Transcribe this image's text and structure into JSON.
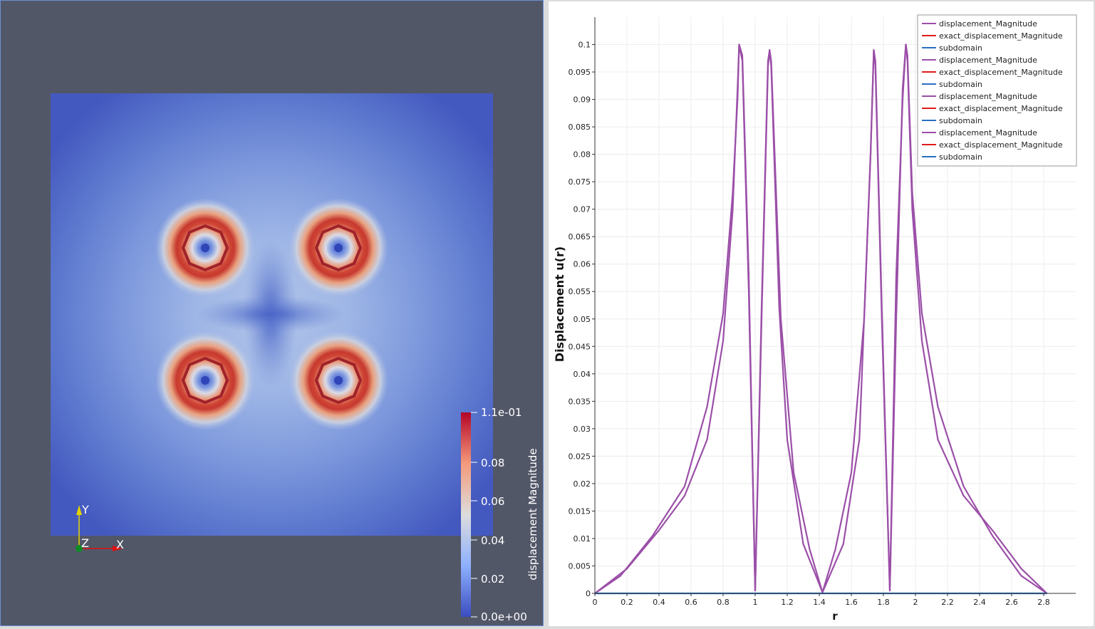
{
  "render_view": {
    "colorbar": {
      "title": "displacement Magnitude",
      "tick_labels": [
        "1.1e-01",
        "0.08",
        "0.06",
        "0.04",
        "0.02",
        "0.0e+00"
      ],
      "colors": {
        "low": "#3b4cc0",
        "mid": "#dddddd",
        "high": "#b40426"
      }
    },
    "axes": {
      "x_label": "X",
      "y_label": "Y",
      "z_label": "Z",
      "x_color": "#e01010",
      "y_color": "#e6d200",
      "z_color": "#0f8a28"
    },
    "background_color": "#525768"
  },
  "chart_data": {
    "type": "line",
    "xlabel": "r",
    "ylabel": "Displacement u(r)",
    "xlim": [
      0,
      3.0
    ],
    "ylim": [
      0,
      0.105
    ],
    "x_ticks": [
      "0",
      "0.2",
      "0.4",
      "0.6",
      "0.8",
      "1",
      "1.2",
      "1.4",
      "1.6",
      "1.8",
      "2",
      "2.2",
      "2.4",
      "2.6",
      "2.8"
    ],
    "y_ticks": [
      "0",
      "0.005",
      "0.01",
      "0.015",
      "0.02",
      "0.025",
      "0.03",
      "0.035",
      "0.04",
      "0.045",
      "0.05",
      "0.055",
      "0.06",
      "0.065",
      "0.07",
      "0.075",
      "0.08",
      "0.085",
      "0.09",
      "0.095",
      "0.1"
    ],
    "grid": true,
    "legend_position": "top-right",
    "legend": [
      {
        "name": "displacement_Magnitude",
        "color": "#9b4fa8"
      },
      {
        "name": "exact_displacement_Magnitude",
        "color": "#e01b1b"
      },
      {
        "name": "subdomain",
        "color": "#2a6fc0"
      },
      {
        "name": "displacement_Magnitude",
        "color": "#9b4fa8"
      },
      {
        "name": "exact_displacement_Magnitude",
        "color": "#e01b1b"
      },
      {
        "name": "subdomain",
        "color": "#2a6fc0"
      },
      {
        "name": "displacement_Magnitude",
        "color": "#9b4fa8"
      },
      {
        "name": "exact_displacement_Magnitude",
        "color": "#e01b1b"
      },
      {
        "name": "subdomain",
        "color": "#2a6fc0"
      },
      {
        "name": "displacement_Magnitude",
        "color": "#9b4fa8"
      },
      {
        "name": "exact_displacement_Magnitude",
        "color": "#e01b1b"
      },
      {
        "name": "subdomain",
        "color": "#2a6fc0"
      }
    ],
    "series": [
      {
        "name": "displacement_Magnitude",
        "color": "#9b4fa8",
        "x": [
          0,
          0.2,
          0.4,
          0.56,
          0.7,
          0.8,
          0.86,
          0.89,
          0.9,
          0.92,
          0.96,
          1.0,
          1.04,
          1.08,
          1.09,
          1.1,
          1.15,
          1.2,
          1.3,
          1.42,
          1.55,
          1.65,
          1.72,
          1.74,
          1.75,
          1.79,
          1.84,
          1.88,
          1.92,
          1.94,
          1.95,
          1.98,
          2.04,
          2.14,
          2.3,
          2.48,
          2.66,
          2.82
        ],
        "y": [
          0,
          0.0045,
          0.0115,
          0.0178,
          0.028,
          0.046,
          0.07,
          0.092,
          0.1,
          0.097,
          0.055,
          0.0005,
          0.05,
          0.096,
          0.099,
          0.096,
          0.052,
          0.028,
          0.009,
          0.0002,
          0.009,
          0.028,
          0.08,
          0.099,
          0.096,
          0.05,
          0.0005,
          0.05,
          0.092,
          0.1,
          0.097,
          0.07,
          0.046,
          0.028,
          0.0178,
          0.0115,
          0.0045,
          0
        ]
      },
      {
        "name": "displacement_Magnitude",
        "color": "#9b4fa8",
        "x": [
          0,
          0.16,
          0.36,
          0.56,
          0.7,
          0.8,
          0.86,
          0.89,
          0.9,
          0.92,
          0.96,
          1.0,
          1.04,
          1.08,
          1.09,
          1.1,
          1.16,
          1.24,
          1.34,
          1.42,
          1.5,
          1.6,
          1.68,
          1.72,
          1.74,
          1.75,
          1.79,
          1.84,
          1.88,
          1.92,
          1.94,
          1.95,
          1.98,
          2.04,
          2.14,
          2.3,
          2.48,
          2.66,
          2.82
        ],
        "y": [
          0,
          0.0032,
          0.0105,
          0.0195,
          0.034,
          0.051,
          0.073,
          0.09,
          0.1,
          0.098,
          0.058,
          0.0005,
          0.052,
          0.097,
          0.099,
          0.097,
          0.05,
          0.022,
          0.008,
          0.0002,
          0.008,
          0.022,
          0.05,
          0.08,
          0.099,
          0.097,
          0.052,
          0.0005,
          0.058,
          0.09,
          0.1,
          0.098,
          0.073,
          0.051,
          0.034,
          0.0195,
          0.0105,
          0.0032,
          0
        ]
      },
      {
        "name": "subdomain",
        "color": "#2a6fc0",
        "x": [
          0,
          2.82
        ],
        "y": [
          0,
          0
        ]
      }
    ]
  }
}
